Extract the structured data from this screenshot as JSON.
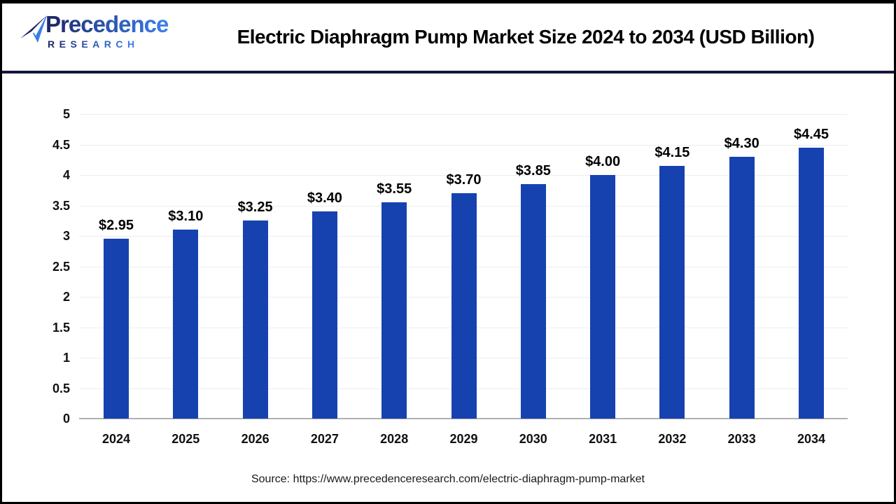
{
  "header": {
    "logo": {
      "word": "Precedence",
      "subword": "RESEARCH",
      "color_dark": "#1c2a6a",
      "color_bright": "#3a7de8"
    },
    "title": "Electric Diaphragm Pump Market Size 2024 to 2034 (USD Billion)"
  },
  "chart_data": {
    "type": "bar",
    "title": "Electric Diaphragm Pump Market Size 2024 to 2034 (USD Billion)",
    "categories": [
      "2024",
      "2025",
      "2026",
      "2027",
      "2028",
      "2029",
      "2030",
      "2031",
      "2032",
      "2033",
      "2034"
    ],
    "values": [
      2.95,
      3.1,
      3.25,
      3.4,
      3.55,
      3.7,
      3.85,
      4.0,
      4.15,
      4.3,
      4.45
    ],
    "bar_labels": [
      "$2.95",
      "$3.10",
      "$3.25",
      "$3.40",
      "$3.55",
      "$3.70",
      "$3.85",
      "$4.00",
      "$4.15",
      "$4.30",
      "$4.45"
    ],
    "xlabel": "",
    "ylabel": "",
    "ylim": [
      0,
      5
    ],
    "ytick_values": [
      0,
      0.5,
      1,
      1.5,
      2,
      2.5,
      3,
      3.5,
      4,
      4.5,
      5
    ],
    "ytick_labels": [
      "0",
      "0.5",
      "1",
      "1.5",
      "2",
      "2.5",
      "3",
      "3.5",
      "4",
      "4.5",
      "5"
    ],
    "bar_color": "#1642b0",
    "grid": true,
    "legend_position": "none"
  },
  "footer": {
    "source": "Source: https://www.precedenceresearch.com/electric-diaphragm-pump-market"
  },
  "colors": {
    "frame_border": "#000000",
    "header_divider": "#15153d",
    "gridline": "#ededed",
    "axis_line": "#b0b0b0"
  }
}
